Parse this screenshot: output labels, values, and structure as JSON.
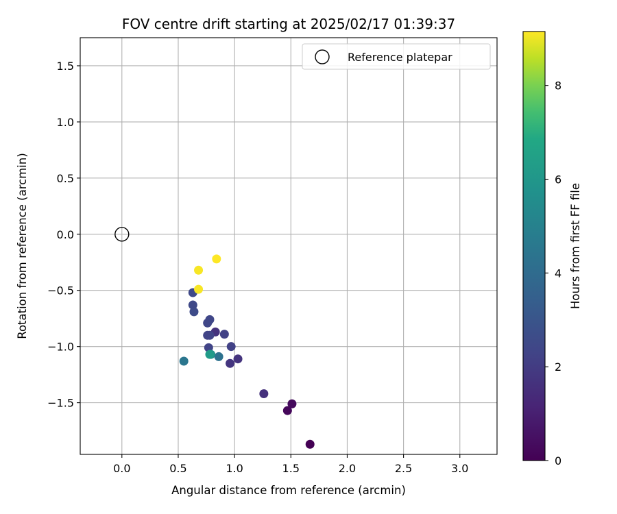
{
  "chart_data": {
    "type": "scatter",
    "title": "FOV centre drift starting at 2025/02/17 01:39:37",
    "xlabel": "Angular distance from reference (arcmin)",
    "ylabel": "Rotation from reference (arcmin)",
    "xlim": [
      -0.37,
      3.33
    ],
    "ylim": [
      -1.96,
      1.75
    ],
    "xticks": [
      0.0,
      0.5,
      1.0,
      1.5,
      2.0,
      2.5,
      3.0
    ],
    "xtick_labels": [
      "0.0",
      "0.5",
      "1.0",
      "1.5",
      "2.0",
      "2.5",
      "3.0"
    ],
    "yticks": [
      1.5,
      1.0,
      0.5,
      0.0,
      -0.5,
      -1.0,
      -1.5
    ],
    "ytick_labels": [
      "1.5",
      "1.0",
      "0.5",
      "0.0",
      "−0.5",
      "−1.0",
      "−1.5"
    ],
    "grid": true,
    "legend": {
      "placement": "top-right",
      "entries": [
        {
          "label": "Reference platepar",
          "marker": "open-circle"
        }
      ]
    },
    "reference_point": {
      "x": 0.0,
      "y": 0.0
    },
    "colorbar": {
      "label": "Hours from first FF file",
      "colormap": "viridis",
      "range": [
        0,
        9.15
      ],
      "ticks": [
        0,
        2,
        4,
        6,
        8
      ],
      "tick_labels": [
        "0",
        "2",
        "4",
        "6",
        "8"
      ]
    },
    "points": [
      {
        "x": 1.67,
        "y": -1.87,
        "hours": 0.0
      },
      {
        "x": 1.47,
        "y": -1.57,
        "hours": 0.2
      },
      {
        "x": 1.51,
        "y": -1.51,
        "hours": 0.3
      },
      {
        "x": 1.26,
        "y": -1.42,
        "hours": 1.6
      },
      {
        "x": 1.03,
        "y": -1.11,
        "hours": 1.7
      },
      {
        "x": 0.96,
        "y": -1.15,
        "hours": 1.75
      },
      {
        "x": 0.83,
        "y": -0.87,
        "hours": 1.65
      },
      {
        "x": 0.97,
        "y": -1.0,
        "hours": 2.2
      },
      {
        "x": 0.91,
        "y": -0.89,
        "hours": 2.2
      },
      {
        "x": 0.76,
        "y": -0.9,
        "hours": 2.3
      },
      {
        "x": 0.78,
        "y": -0.9,
        "hours": 2.3
      },
      {
        "x": 0.77,
        "y": -1.01,
        "hours": 2.3
      },
      {
        "x": 0.76,
        "y": -0.79,
        "hours": 2.4
      },
      {
        "x": 0.78,
        "y": -0.76,
        "hours": 2.4
      },
      {
        "x": 0.63,
        "y": -0.52,
        "hours": 2.5
      },
      {
        "x": 0.63,
        "y": -0.63,
        "hours": 2.5
      },
      {
        "x": 0.64,
        "y": -0.69,
        "hours": 2.6
      },
      {
        "x": 0.86,
        "y": -1.09,
        "hours": 4.3
      },
      {
        "x": 0.55,
        "y": -1.13,
        "hours": 4.5
      },
      {
        "x": 0.79,
        "y": -1.07,
        "hours": 5.6
      },
      {
        "x": 0.78,
        "y": -1.07,
        "hours": 6.2
      },
      {
        "x": 0.68,
        "y": -0.32,
        "hours": 9.1
      },
      {
        "x": 0.68,
        "y": -0.49,
        "hours": 9.1
      },
      {
        "x": 0.84,
        "y": -0.22,
        "hours": 9.15
      }
    ]
  }
}
